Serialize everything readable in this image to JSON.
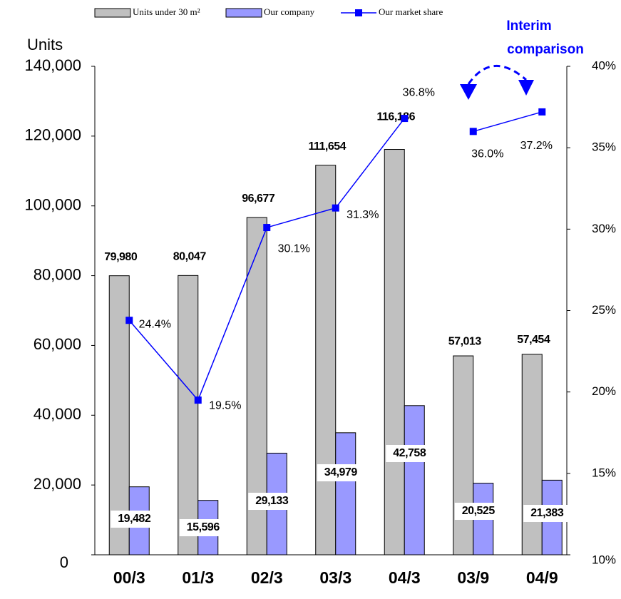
{
  "chart_data": {
    "type": "bar_line",
    "y_label": "Units",
    "annotation_lines": [
      "Interim",
      "comparison"
    ],
    "categories": [
      "00/3",
      "01/3",
      "02/3",
      "03/3",
      "04/3",
      "03/9",
      "04/9"
    ],
    "series": [
      {
        "name": "Units under 30 m²",
        "color": "#c0c0c0",
        "values": [
          79980,
          80047,
          96677,
          111654,
          116186,
          57013,
          57454
        ],
        "value_labels": [
          "79,980",
          "80,047",
          "96,677",
          "111,654",
          "116,186",
          "57,013",
          "57,454"
        ]
      },
      {
        "name": "Our company",
        "color": "#9999ff",
        "values": [
          19482,
          15596,
          29133,
          34979,
          42758,
          20525,
          21383
        ],
        "value_labels": [
          "19,482",
          "15,596",
          "29,133",
          "34,979",
          "42,758",
          "20,525",
          "21,383"
        ]
      },
      {
        "name": "Our market share",
        "color": "#0000ff",
        "type": "line",
        "axis": "y2",
        "values": [
          24.4,
          19.5,
          30.1,
          31.3,
          36.8,
          36.0,
          37.2
        ],
        "value_labels": [
          "24.4%",
          "19.5%",
          "30.1%",
          "31.3%",
          "36.8%",
          "36.0%",
          "37.2%"
        ]
      }
    ],
    "line_break_before": 5,
    "ylim": [
      0,
      140000
    ],
    "yticks": [
      0,
      {
        "value": 20000,
        "label": "20,000"
      },
      {
        "value": 40000,
        "label": "40,000"
      },
      {
        "value": 60000,
        "label": "60,000"
      },
      {
        "value": 80000,
        "label": "80,000"
      },
      {
        "value": 100000,
        "label": "100,000"
      },
      {
        "value": 120000,
        "label": "120,000"
      },
      {
        "value": 140000,
        "label": "140,000"
      }
    ],
    "y2lim": [
      10,
      40
    ],
    "y2ticks": [
      {
        "value": 10,
        "label": "10%"
      },
      {
        "value": 15,
        "label": "15%"
      },
      {
        "value": 20,
        "label": "20%"
      },
      {
        "value": 25,
        "label": "25%"
      },
      {
        "value": 30,
        "label": "30%"
      },
      {
        "value": 35,
        "label": "35%"
      },
      {
        "value": 40,
        "label": "40%"
      }
    ],
    "grid": false
  }
}
